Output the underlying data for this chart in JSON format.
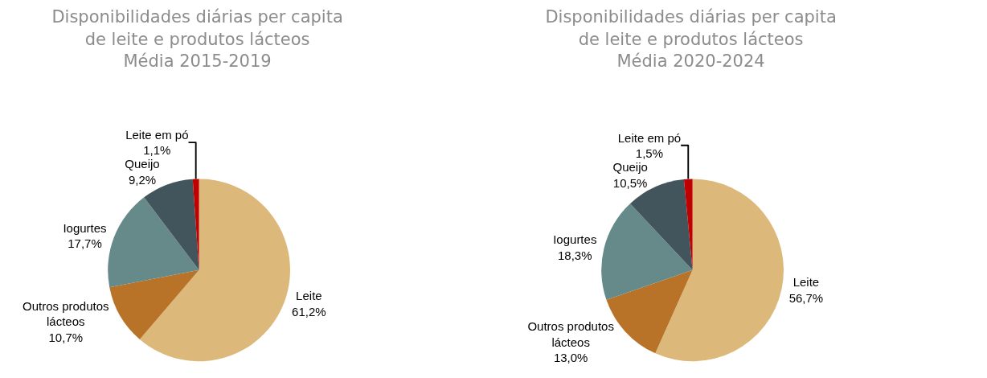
{
  "chart_data": [
    {
      "type": "pie",
      "title": "Disponibilidades diárias per capita\nde leite e produtos lácteos\nMédia 2015-2019",
      "categories": [
        "Leite",
        "Outros produtos lácteos",
        "Iogurtes",
        "Queijo",
        "Leite em pó"
      ],
      "values": [
        61.2,
        10.7,
        17.7,
        9.2,
        1.1
      ],
      "value_labels": [
        "61,2%",
        "10,7%",
        "17,7%",
        "9,2%",
        "1,1%"
      ],
      "colors": [
        "#dcb97a",
        "#b87328",
        "#668a8a",
        "#42555c",
        "#c00000"
      ],
      "legend": false
    },
    {
      "type": "pie",
      "title": "Disponibilidades diárias per capita\nde leite e produtos lácteos\nMédia 2020-2024",
      "categories": [
        "Leite",
        "Outros produtos lácteos",
        "Iogurtes",
        "Queijo",
        "Leite em pó"
      ],
      "values": [
        56.7,
        13.0,
        18.3,
        10.5,
        1.5
      ],
      "value_labels": [
        "56,7%",
        "13,0%",
        "18,3%",
        "10,5%",
        "1,5%"
      ],
      "colors": [
        "#dcb97a",
        "#b87328",
        "#668a8a",
        "#42555c",
        "#c00000"
      ],
      "legend": false
    }
  ]
}
